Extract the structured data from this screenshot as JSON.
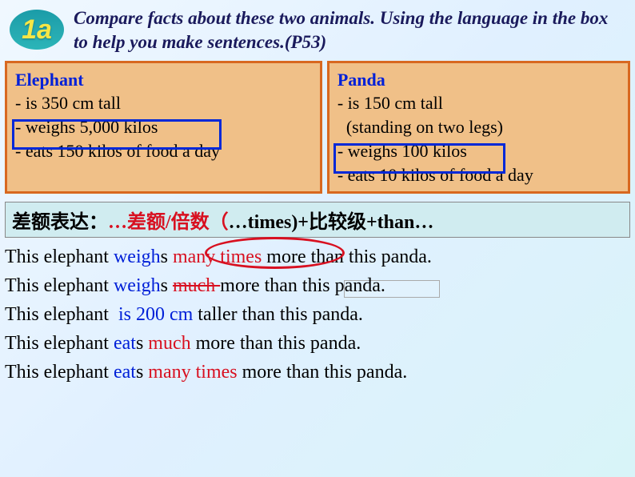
{
  "badge": "1a",
  "instruction": "Compare facts about these two animals. Using the language in the box to help you make sentences.(P53)",
  "elephant": {
    "title": "Elephant",
    "f1": "- is 350 cm tall",
    "f2": "- weighs 5,000 kilos",
    "f3": "- eats 150 kilos of food a day"
  },
  "panda": {
    "title": "Panda",
    "f1": "- is 150 cm tall",
    "f1b": "  (standing on two legs)",
    "f2": "- weighs 100 kilos",
    "f3": "- eats 10 kilos of food a day"
  },
  "formula": {
    "p1": "差额表达：",
    "p2": "…差额/倍数（",
    "p3": "…times)+比较级+than…"
  },
  "s1": {
    "a": "This elephant ",
    "b": "weigh",
    "c": "s ",
    "d": "many times ",
    "e": "more than this panda."
  },
  "s2": {
    "a": "This elephant ",
    "b": "weigh",
    "c": "s ",
    "d": "much ",
    "e": "more than this panda."
  },
  "s3": {
    "a": "This elephant  ",
    "b": "is 200 cm",
    "c": " taller than this panda."
  },
  "s4": {
    "a": "This elephant ",
    "b": "eat",
    "c": "s ",
    "d": "much",
    "e": " more than this panda."
  },
  "s5": {
    "a": "This elephant ",
    "b": "eat",
    "c": "s ",
    "d": "many times",
    "e": " more than this panda."
  },
  "colors": {
    "badge_bg": "#25a8b0",
    "badge_text": "#f5e646",
    "instruction": "#1a1a5c",
    "box_bg": "#f0c088",
    "box_border": "#d86820",
    "blue": "#0020d8",
    "red": "#d81020",
    "formula_bg": "#d0ecf0"
  }
}
